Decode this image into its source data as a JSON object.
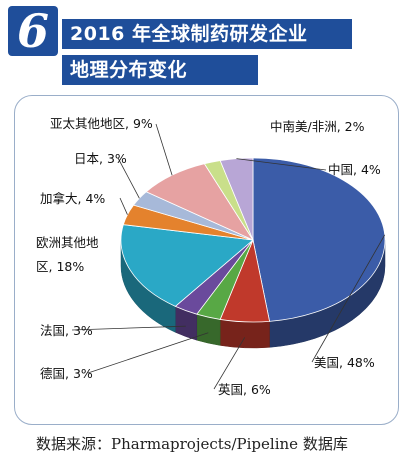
{
  "badge": {
    "number": "6"
  },
  "title": {
    "line1": "2016 年全球制药研发企业",
    "line2": "地理分布变化"
  },
  "source": "数据来源：Pharmaprojects/Pipeline 数据库",
  "chart_data": {
    "type": "pie",
    "unit": "%",
    "slices": [
      {
        "label": "美国",
        "value": 48,
        "display": "美国, 48%",
        "color": "#3b5ca8"
      },
      {
        "label": "英国",
        "value": 6,
        "display": "英国, 6%",
        "color": "#c0392b"
      },
      {
        "label": "德国",
        "value": 3,
        "display": "德国, 3%",
        "color": "#58a845"
      },
      {
        "label": "法国",
        "value": 3,
        "display": "法国, 3%",
        "color": "#6a4a9c"
      },
      {
        "label": "欧洲其他地区",
        "value": 18,
        "display": [
          "欧洲其他地",
          "区, 18%"
        ],
        "color": "#2aa8c6"
      },
      {
        "label": "加拿大",
        "value": 4,
        "display": "加拿大, 4%",
        "color": "#e4822d"
      },
      {
        "label": "日本",
        "value": 3,
        "display": "日本, 3%",
        "color": "#a7b9d9"
      },
      {
        "label": "亚太其他地区",
        "value": 9,
        "display": "亚太其他地区, 9%",
        "color": "#e6a2a2"
      },
      {
        "label": "中南美/非洲",
        "value": 2,
        "display": "中南美/非洲, 2%",
        "color": "#c9df8a"
      },
      {
        "label": "中国",
        "value": 4,
        "display": "中国, 4%",
        "color": "#b8a6d6"
      }
    ]
  }
}
